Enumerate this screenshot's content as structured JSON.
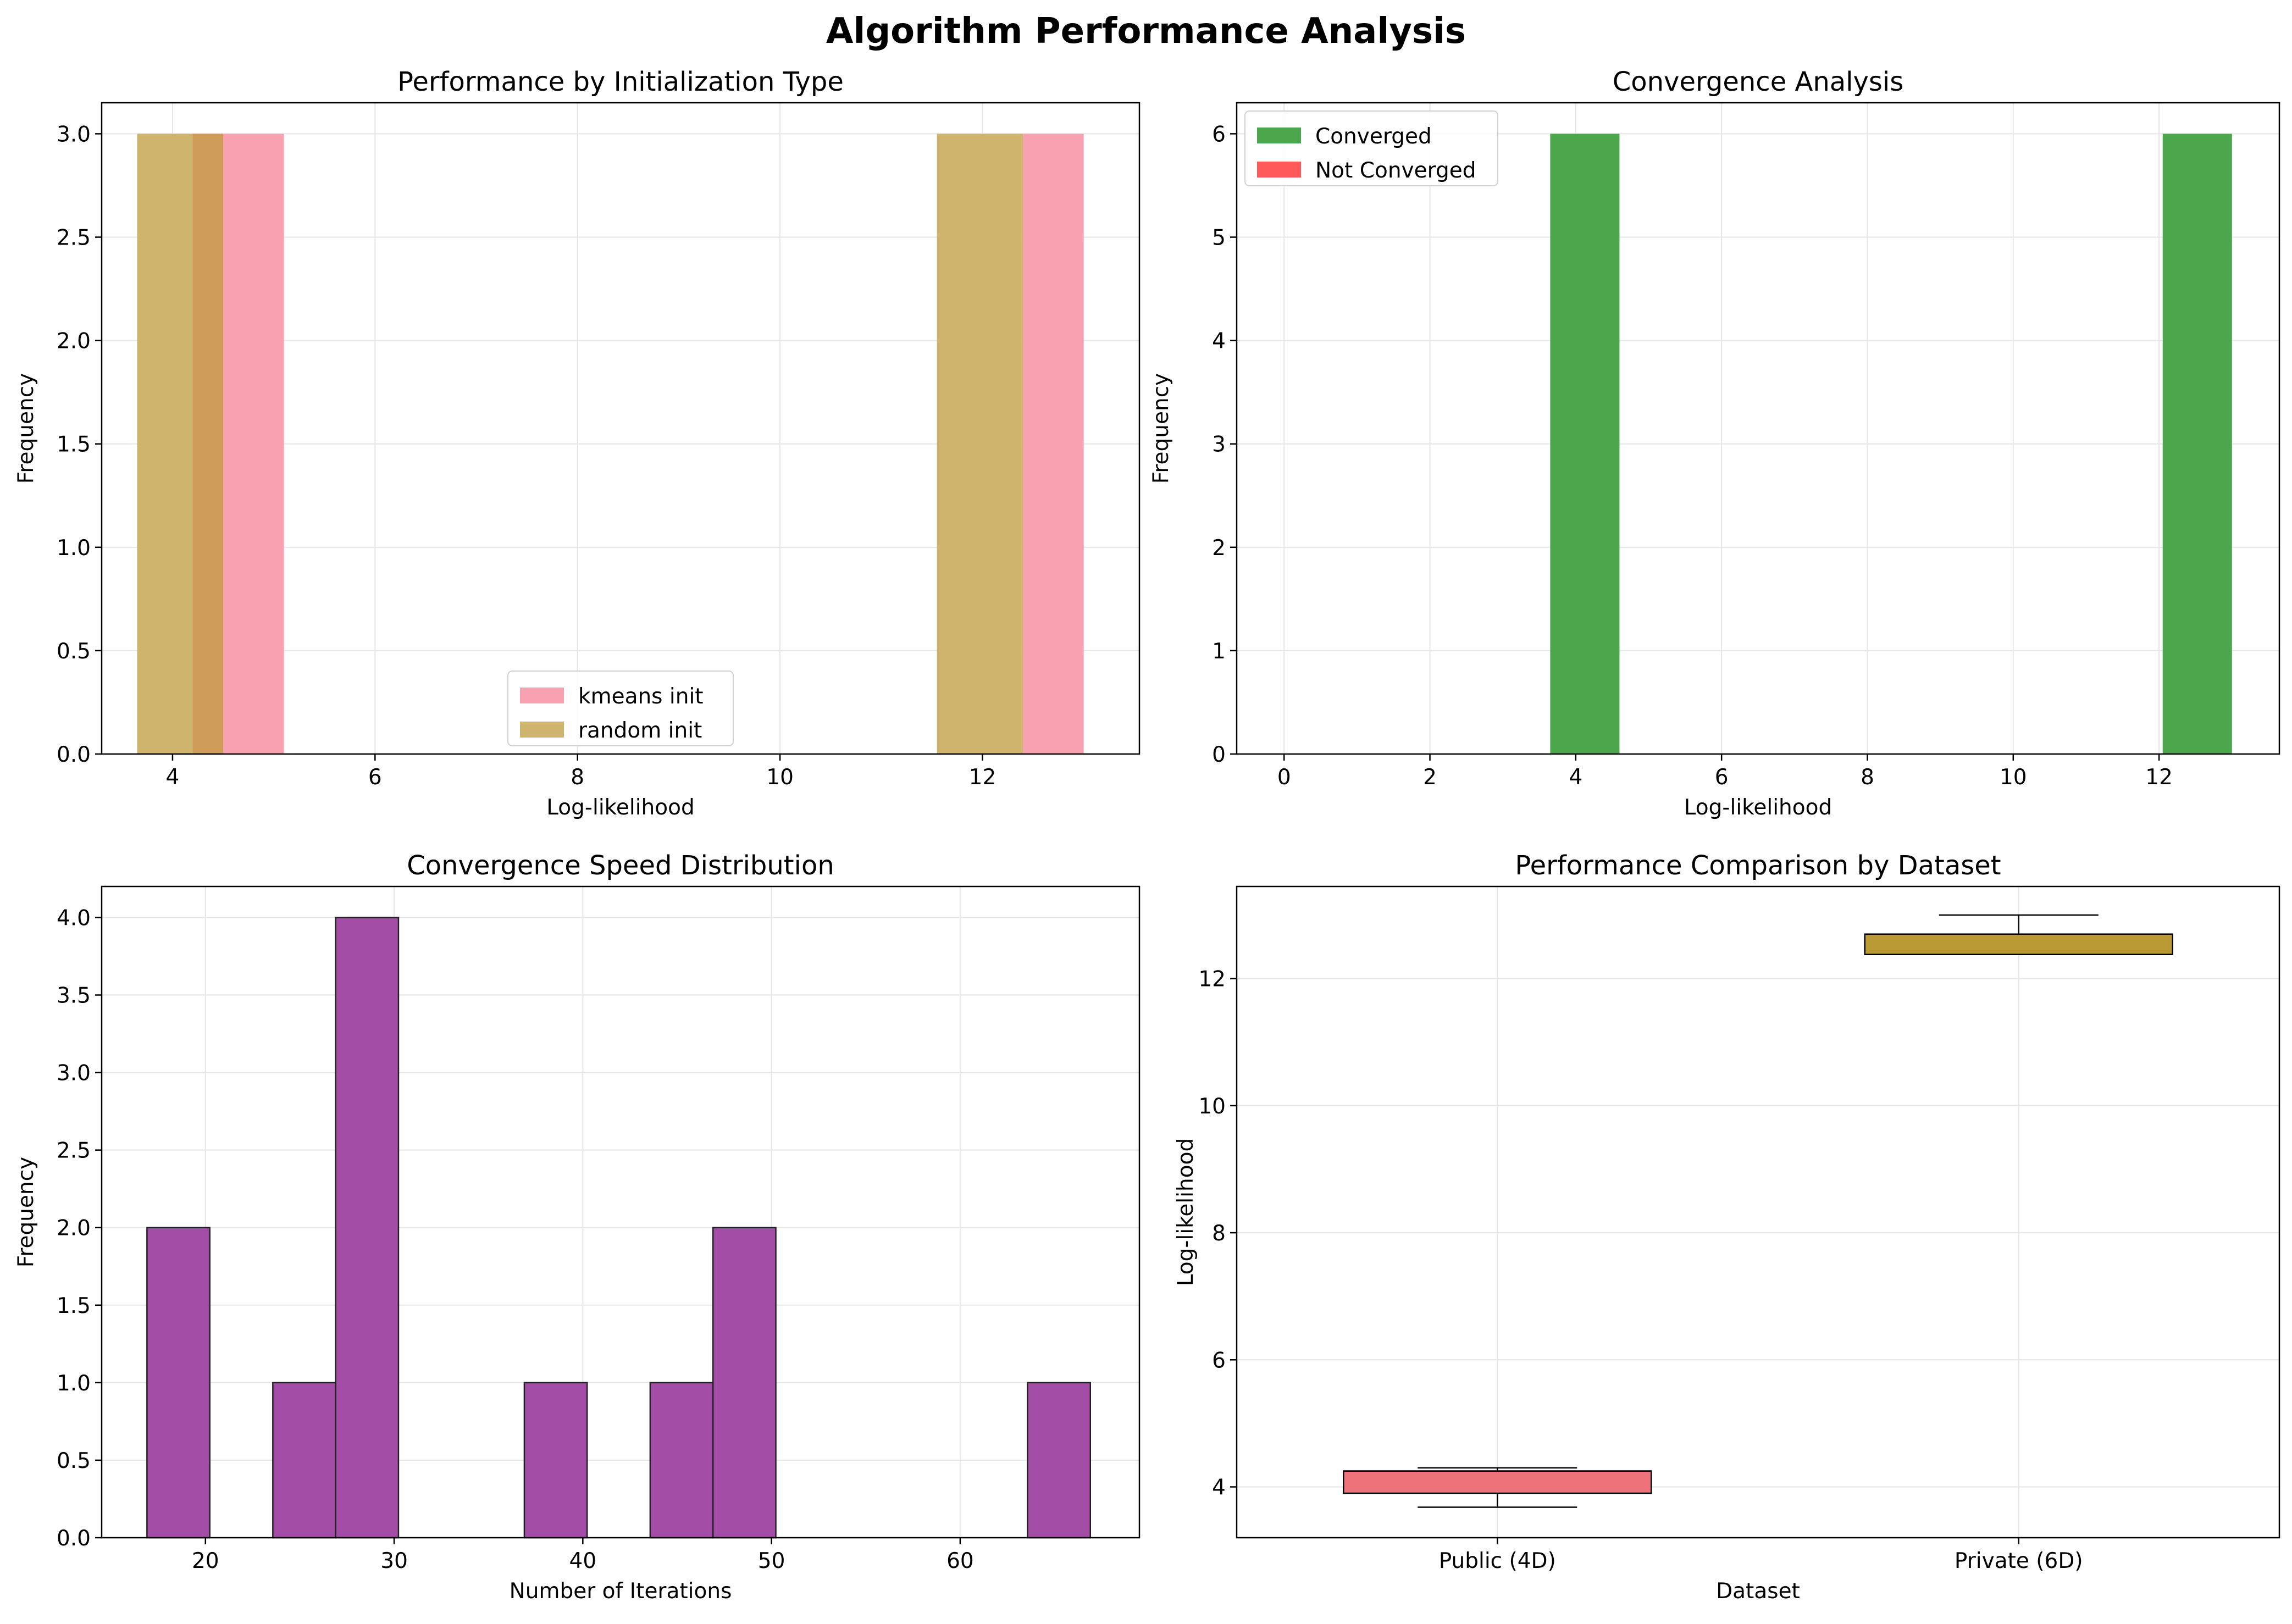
{
  "figure": {
    "suptitle": "Algorithm Performance Analysis"
  },
  "colors": {
    "pink": "#f7a1b1",
    "gold": "#cfb46d",
    "overlap": "#cf9c5a",
    "green": "#4ca64c",
    "red": "#ff5a5a",
    "purple": "#a34da6",
    "box1": "#ee7279",
    "box2": "#b99a35",
    "grid": "#e6e6e6"
  },
  "chart_data": [
    {
      "type": "bar",
      "title": "Performance by Initialization Type",
      "xlabel": "Log-likelihood",
      "ylabel": "Frequency",
      "xlim": [
        3.3,
        13.55
      ],
      "ylim": [
        0,
        3.15
      ],
      "xticks": [
        "4",
        "6",
        "8",
        "10",
        "12"
      ],
      "xtick_values": [
        4,
        6,
        8,
        10,
        12
      ],
      "yticks": [
        "0.0",
        "0.5",
        "1.0",
        "1.5",
        "2.0",
        "2.5",
        "3.0"
      ],
      "ytick_values": [
        0,
        0.5,
        1,
        1.5,
        2,
        2.5,
        3
      ],
      "legend": {
        "position": "lower center",
        "entries": [
          {
            "label": "kmeans init",
            "color": "#f7a1b1"
          },
          {
            "label": "random init",
            "color": "#cfb46d"
          }
        ]
      },
      "series": [
        {
          "name": "kmeans init",
          "bins": [
            [
              4.2,
              5.1,
              3
            ],
            [
              12.4,
              13.0,
              3
            ]
          ]
        },
        {
          "name": "random init",
          "bins": [
            [
              3.65,
              4.5,
              3
            ],
            [
              11.55,
              12.4,
              3
            ]
          ]
        }
      ]
    },
    {
      "type": "bar",
      "title": "Convergence Analysis",
      "xlabel": "Log-likelihood",
      "ylabel": "Frequency",
      "xlim": [
        -0.65,
        13.65
      ],
      "ylim": [
        0,
        6.3
      ],
      "xticks": [
        "0",
        "2",
        "4",
        "6",
        "8",
        "10",
        "12"
      ],
      "xtick_values": [
        0,
        2,
        4,
        6,
        8,
        10,
        12
      ],
      "yticks": [
        "0",
        "1",
        "2",
        "3",
        "4",
        "5",
        "6"
      ],
      "ytick_values": [
        0,
        1,
        2,
        3,
        4,
        5,
        6
      ],
      "legend": {
        "position": "upper left",
        "entries": [
          {
            "label": "Converged",
            "color": "#4ca64c"
          },
          {
            "label": "Not Converged",
            "color": "#ff5a5a"
          }
        ]
      },
      "series": [
        {
          "name": "Converged",
          "bins": [
            [
              3.65,
              4.6,
              6
            ],
            [
              12.05,
              13.0,
              6
            ]
          ]
        },
        {
          "name": "Not Converged",
          "bins": []
        }
      ]
    },
    {
      "type": "bar",
      "title": "Convergence Speed Distribution",
      "xlabel": "Number of Iterations",
      "ylabel": "Frequency",
      "xlim": [
        14.5,
        69.5
      ],
      "ylim": [
        0,
        4.2
      ],
      "xticks": [
        "20",
        "30",
        "40",
        "50",
        "60"
      ],
      "xtick_values": [
        20,
        30,
        40,
        50,
        60
      ],
      "yticks": [
        "0.0",
        "0.5",
        "1.0",
        "1.5",
        "2.0",
        "2.5",
        "3.0",
        "3.5",
        "4.0"
      ],
      "ytick_values": [
        0,
        0.5,
        1,
        1.5,
        2,
        2.5,
        3,
        3.5,
        4
      ],
      "series": [
        {
          "name": "",
          "bins": [
            [
              16.9,
              20.23,
              2
            ],
            [
              23.57,
              26.9,
              1
            ],
            [
              26.9,
              30.23,
              4
            ],
            [
              36.9,
              40.23,
              1
            ],
            [
              43.57,
              46.9,
              1
            ],
            [
              46.9,
              50.23,
              2
            ],
            [
              63.57,
              66.9,
              1
            ]
          ]
        }
      ]
    },
    {
      "type": "box",
      "title": "Performance Comparison by Dataset",
      "xlabel": "Dataset",
      "ylabel": "Log-likelihood",
      "ylim": [
        3.2,
        13.45
      ],
      "categories": [
        "Public (4D)",
        "Private (6D)"
      ],
      "yticks": [
        "4",
        "6",
        "8",
        "10",
        "12"
      ],
      "ytick_values": [
        4,
        6,
        8,
        10,
        12
      ],
      "boxes": [
        {
          "category": "Public (4D)",
          "whislo": 3.68,
          "q1": 3.9,
          "median": 4.25,
          "q3": 4.25,
          "whishi": 4.3,
          "color": "#ee7279"
        },
        {
          "category": "Private (6D)",
          "whislo": 12.38,
          "q1": 12.38,
          "median": 12.38,
          "q3": 12.7,
          "whishi": 13.0,
          "color": "#b99a35"
        }
      ]
    }
  ]
}
